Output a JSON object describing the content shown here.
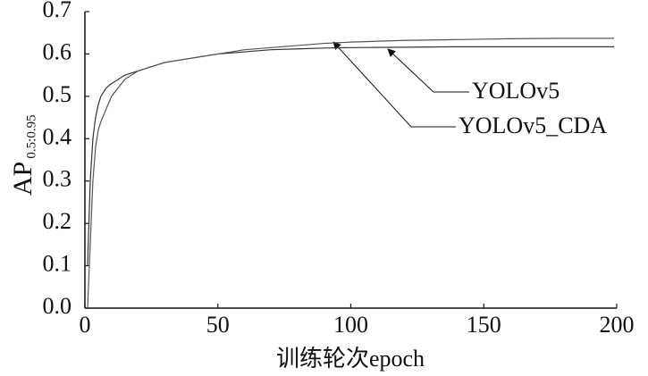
{
  "chart_data": {
    "type": "line",
    "xlabel": "训练轮次epoch",
    "ylabel": "AP",
    "ylabel_subscript": "0.5:0.95",
    "x": [
      1,
      2,
      3,
      4,
      5,
      6,
      8,
      10,
      15,
      20,
      30,
      40,
      50,
      60,
      70,
      80,
      90,
      100,
      120,
      140,
      160,
      180,
      199
    ],
    "series": [
      {
        "name": "YOLOv5",
        "color": "#333333",
        "values": [
          0.1,
          0.3,
          0.4,
          0.45,
          0.48,
          0.5,
          0.52,
          0.53,
          0.55,
          0.56,
          0.58,
          0.59,
          0.6,
          0.605,
          0.61,
          0.612,
          0.614,
          0.615,
          0.616,
          0.617,
          0.617,
          0.617,
          0.617
        ]
      },
      {
        "name": "YOLOv5_CDA",
        "color": "#555555",
        "values": [
          0.0,
          0.15,
          0.3,
          0.38,
          0.42,
          0.44,
          0.47,
          0.5,
          0.54,
          0.56,
          0.58,
          0.59,
          0.6,
          0.61,
          0.615,
          0.62,
          0.625,
          0.628,
          0.632,
          0.634,
          0.636,
          0.637,
          0.637
        ]
      }
    ],
    "xlim": [
      0,
      200
    ],
    "xticks": [
      0,
      50,
      100,
      150,
      200
    ],
    "ylim": [
      0,
      0.7
    ],
    "yticks": [
      {
        "value": 0,
        "label": "0.0"
      },
      0.1,
      0.2,
      0.3,
      0.4,
      0.5,
      0.6,
      0.7
    ]
  }
}
